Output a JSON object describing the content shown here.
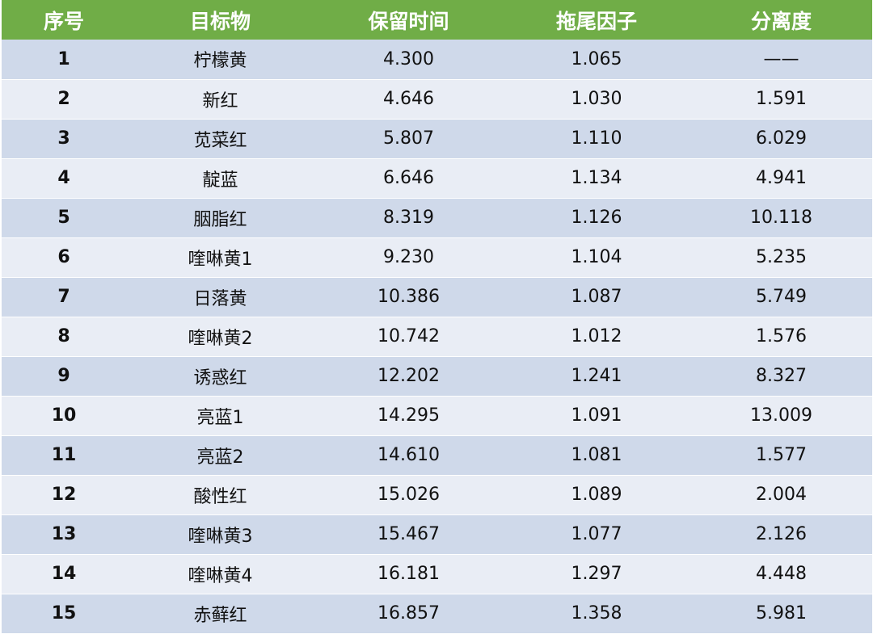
{
  "table": {
    "headers": [
      "序号",
      "目标物",
      "保留时间",
      "拖尾因子",
      "分离度"
    ],
    "rows": [
      {
        "no": "1",
        "target": "柠檬黄",
        "retention": "4.300",
        "tailing": "1.065",
        "resolution": "——"
      },
      {
        "no": "2",
        "target": "新红",
        "retention": "4.646",
        "tailing": "1.030",
        "resolution": "1.591"
      },
      {
        "no": "3",
        "target": "苋菜红",
        "retention": "5.807",
        "tailing": "1.110",
        "resolution": "6.029"
      },
      {
        "no": "4",
        "target": "靛蓝",
        "retention": "6.646",
        "tailing": "1.134",
        "resolution": "4.941"
      },
      {
        "no": "5",
        "target": "胭脂红",
        "retention": "8.319",
        "tailing": "1.126",
        "resolution": "10.118"
      },
      {
        "no": "6",
        "target": "喹啉黄1",
        "retention": "9.230",
        "tailing": "1.104",
        "resolution": "5.235"
      },
      {
        "no": "7",
        "target": "日落黄",
        "retention": "10.386",
        "tailing": "1.087",
        "resolution": "5.749"
      },
      {
        "no": "8",
        "target": "喹啉黄2",
        "retention": "10.742",
        "tailing": "1.012",
        "resolution": "1.576"
      },
      {
        "no": "9",
        "target": "诱惑红",
        "retention": "12.202",
        "tailing": "1.241",
        "resolution": "8.327"
      },
      {
        "no": "10",
        "target": "亮蓝1",
        "retention": "14.295",
        "tailing": "1.091",
        "resolution": "13.009"
      },
      {
        "no": "11",
        "target": "亮蓝2",
        "retention": "14.610",
        "tailing": "1.081",
        "resolution": "1.577"
      },
      {
        "no": "12",
        "target": "酸性红",
        "retention": "15.026",
        "tailing": "1.089",
        "resolution": "2.004"
      },
      {
        "no": "13",
        "target": "喹啉黄3",
        "retention": "15.467",
        "tailing": "1.077",
        "resolution": "2.126"
      },
      {
        "no": "14",
        "target": "喹啉黄4",
        "retention": "16.181",
        "tailing": "1.297",
        "resolution": "4.448"
      },
      {
        "no": "15",
        "target": "赤藓红",
        "retention": "16.857",
        "tailing": "1.358",
        "resolution": "5.981"
      }
    ]
  },
  "colors": {
    "header_bg": "#70ad47",
    "row_odd_bg": "#cfd9ea",
    "row_even_bg": "#e9edf5"
  }
}
